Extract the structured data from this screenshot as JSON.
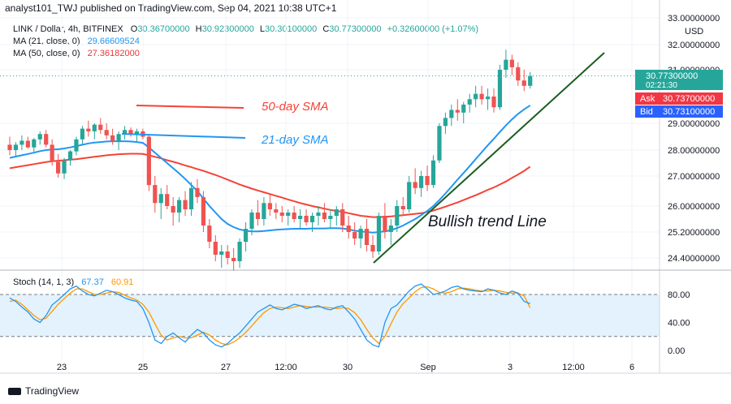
{
  "header": {
    "publisher": "analyst101_TWJ published on TradingView.com, Sep 04, 2021 10:38 UTC+1"
  },
  "legend": {
    "symbol": "LINK / Dollar, 4h, BITFINEX",
    "ohlc": {
      "O": "30.36700000",
      "H": "30.92300000",
      "L": "30.30100000",
      "C": "30.77300000",
      "change": "+0.32600000 (+1.07%)"
    },
    "ma21": {
      "label": "MA (21, close, 0)",
      "value": "29.66609524"
    },
    "ma50": {
      "label": "MA (50, close, 0)",
      "value": "27.36182000"
    }
  },
  "price_axis": {
    "currency": "USD",
    "ticks": [
      "33.00000000",
      "32.00000000",
      "31.00000000",
      "29.00000000",
      "28.00000000",
      "27.00000000",
      "26.00000000",
      "25.20000000",
      "24.40000000"
    ],
    "last_price": "30.77300000",
    "countdown": "02:21:30",
    "ask_label": "Ask",
    "ask": "30.73700000",
    "bid_label": "Bid",
    "bid": "30.73100000"
  },
  "time_axis": {
    "ticks": [
      "23",
      "25",
      "27",
      "12:00",
      "30",
      "Sep",
      "3",
      "12:00",
      "6"
    ]
  },
  "annotations": {
    "sma50": "50-day SMA",
    "sma21": "21-day SMA",
    "trend": "Bullish trend Line"
  },
  "stoch": {
    "label": "Stoch (14, 1, 3)",
    "k_value": "67.37",
    "d_value": "60.91",
    "ticks": [
      "80.00",
      "40.00",
      "0.00"
    ],
    "upper": 80,
    "lower": 20
  },
  "brand": {
    "name": "TradingView"
  },
  "colors": {
    "up": "#26a69a",
    "down": "#ef5350",
    "ma21": "#2196f3",
    "ma50": "#f44336",
    "trend": "#1b5e20",
    "stoch_k": "#2196f3",
    "stoch_d": "#ff9800",
    "stoch_band": "#e3f2fd"
  },
  "chart_data": {
    "type": "candlestick",
    "title": "LINK / Dollar, 4h, BITFINEX",
    "ylim": [
      24.0,
      33.3
    ],
    "ohlc": [
      [
        28.2,
        28.5,
        27.8,
        28.0
      ],
      [
        28.0,
        28.3,
        27.75,
        28.2
      ],
      [
        28.2,
        28.55,
        28.0,
        28.35
      ],
      [
        28.35,
        28.5,
        28.05,
        28.1
      ],
      [
        28.1,
        28.45,
        27.9,
        28.4
      ],
      [
        28.4,
        28.7,
        28.2,
        28.6
      ],
      [
        28.6,
        28.75,
        28.1,
        28.2
      ],
      [
        28.2,
        28.4,
        27.4,
        27.55
      ],
      [
        27.55,
        27.85,
        26.95,
        27.1
      ],
      [
        27.1,
        27.7,
        26.9,
        27.6
      ],
      [
        27.6,
        28.0,
        27.4,
        27.95
      ],
      [
        27.95,
        28.5,
        27.8,
        28.4
      ],
      [
        28.4,
        28.9,
        28.2,
        28.8
      ],
      [
        28.8,
        29.1,
        28.5,
        28.7
      ],
      [
        28.7,
        29.0,
        28.4,
        28.95
      ],
      [
        28.95,
        29.2,
        28.6,
        28.75
      ],
      [
        28.75,
        29.0,
        28.4,
        28.55
      ],
      [
        28.55,
        28.8,
        28.2,
        28.35
      ],
      [
        28.35,
        28.7,
        28.0,
        28.6
      ],
      [
        28.6,
        28.9,
        28.4,
        28.75
      ],
      [
        28.75,
        28.85,
        28.5,
        28.6
      ],
      [
        28.6,
        28.8,
        28.3,
        28.7
      ],
      [
        28.7,
        28.8,
        28.4,
        28.5
      ],
      [
        28.5,
        28.6,
        26.5,
        26.7
      ],
      [
        26.7,
        27.0,
        25.8,
        26.1
      ],
      [
        26.1,
        26.6,
        25.6,
        26.4
      ],
      [
        26.4,
        26.7,
        25.9,
        26.0
      ],
      [
        26.0,
        26.3,
        25.4,
        25.8
      ],
      [
        25.8,
        26.3,
        25.5,
        26.2
      ],
      [
        26.2,
        26.5,
        25.7,
        25.9
      ],
      [
        25.9,
        26.8,
        25.7,
        26.6
      ],
      [
        26.6,
        26.9,
        26.1,
        26.3
      ],
      [
        26.3,
        26.5,
        25.2,
        25.4
      ],
      [
        25.4,
        25.6,
        24.7,
        24.9
      ],
      [
        24.9,
        25.1,
        24.3,
        24.5
      ],
      [
        24.5,
        24.8,
        24.1,
        24.6
      ],
      [
        24.6,
        24.8,
        24.2,
        24.4
      ],
      [
        24.4,
        24.7,
        24.0,
        24.3
      ],
      [
        24.3,
        25.0,
        24.1,
        24.9
      ],
      [
        24.9,
        25.5,
        24.6,
        25.3
      ],
      [
        25.3,
        25.9,
        25.1,
        25.8
      ],
      [
        25.8,
        26.2,
        25.4,
        25.6
      ],
      [
        25.6,
        26.3,
        25.4,
        26.1
      ],
      [
        26.1,
        26.4,
        25.7,
        25.9
      ],
      [
        25.9,
        26.1,
        25.6,
        25.8
      ],
      [
        25.8,
        26.0,
        25.5,
        25.7
      ],
      [
        25.7,
        25.9,
        25.4,
        25.8
      ],
      [
        25.8,
        26.0,
        25.5,
        25.6
      ],
      [
        25.6,
        25.9,
        25.3,
        25.7
      ],
      [
        25.7,
        25.9,
        25.4,
        25.5
      ],
      [
        25.5,
        25.8,
        25.2,
        25.7
      ],
      [
        25.7,
        26.0,
        25.4,
        25.8
      ],
      [
        25.8,
        26.1,
        25.5,
        25.6
      ],
      [
        25.6,
        25.9,
        25.3,
        25.7
      ],
      [
        25.7,
        26.0,
        25.4,
        25.9
      ],
      [
        25.9,
        26.1,
        25.2,
        25.4
      ],
      [
        25.4,
        25.7,
        25.0,
        25.2
      ],
      [
        25.2,
        25.5,
        24.8,
        25.0
      ],
      [
        25.0,
        25.4,
        24.7,
        25.3
      ],
      [
        25.3,
        25.6,
        24.6,
        24.8
      ],
      [
        24.8,
        25.1,
        24.4,
        24.6
      ],
      [
        24.6,
        25.8,
        24.5,
        25.7
      ],
      [
        25.7,
        26.1,
        25.0,
        25.2
      ],
      [
        25.2,
        25.6,
        24.8,
        25.4
      ],
      [
        25.4,
        26.2,
        25.2,
        26.0
      ],
      [
        26.0,
        26.3,
        25.7,
        25.9
      ],
      [
        25.9,
        27.0,
        25.8,
        26.8
      ],
      [
        26.8,
        27.3,
        26.4,
        26.6
      ],
      [
        26.6,
        27.2,
        26.3,
        27.0
      ],
      [
        27.0,
        27.4,
        26.5,
        26.7
      ],
      [
        26.7,
        27.8,
        26.6,
        27.6
      ],
      [
        27.6,
        29.0,
        27.5,
        28.9
      ],
      [
        28.9,
        29.4,
        28.6,
        29.2
      ],
      [
        29.2,
        29.7,
        28.9,
        29.5
      ],
      [
        29.5,
        29.9,
        29.1,
        29.4
      ],
      [
        29.4,
        29.8,
        29.0,
        29.7
      ],
      [
        29.7,
        30.1,
        29.4,
        29.9
      ],
      [
        29.9,
        30.4,
        29.6,
        30.1
      ],
      [
        30.1,
        30.4,
        29.7,
        29.9
      ],
      [
        29.9,
        30.3,
        29.5,
        30.0
      ],
      [
        30.0,
        30.3,
        29.4,
        29.6
      ],
      [
        29.6,
        31.2,
        29.5,
        31.0
      ],
      [
        31.0,
        31.8,
        30.7,
        31.4
      ],
      [
        31.4,
        31.6,
        30.8,
        31.1
      ],
      [
        31.1,
        31.3,
        30.4,
        30.6
      ],
      [
        30.6,
        31.0,
        30.2,
        30.4
      ],
      [
        30.4,
        30.92,
        30.3,
        30.77
      ]
    ],
    "ma21": [
      27.7,
      27.75,
      27.8,
      27.85,
      27.9,
      27.96,
      28.0,
      28.02,
      28.03,
      28.06,
      28.1,
      28.15,
      28.2,
      28.25,
      28.28,
      28.3,
      28.32,
      28.33,
      28.33,
      28.33,
      28.32,
      28.3,
      28.27,
      28.1,
      27.9,
      27.7,
      27.5,
      27.3,
      27.1,
      26.9,
      26.7,
      26.5,
      26.25,
      26.0,
      25.8,
      25.6,
      25.45,
      25.35,
      25.28,
      25.24,
      25.22,
      25.22,
      25.23,
      25.25,
      25.27,
      25.28,
      25.29,
      25.3,
      25.3,
      25.3,
      25.31,
      25.31,
      25.31,
      25.32,
      25.32,
      25.31,
      25.28,
      25.24,
      25.22,
      25.2,
      25.18,
      25.2,
      25.22,
      25.26,
      25.32,
      25.4,
      25.5,
      25.6,
      25.72,
      25.85,
      26.0,
      26.2,
      26.42,
      26.65,
      26.88,
      27.12,
      27.38,
      27.65,
      27.92,
      28.18,
      28.42,
      28.68,
      28.92,
      29.15,
      29.35,
      29.52,
      29.67
    ],
    "ma50": [
      27.3,
      27.34,
      27.38,
      27.42,
      27.46,
      27.5,
      27.54,
      27.57,
      27.59,
      27.61,
      27.63,
      27.65,
      27.68,
      27.71,
      27.74,
      27.77,
      27.8,
      27.82,
      27.84,
      27.85,
      27.86,
      27.86,
      27.85,
      27.8,
      27.74,
      27.68,
      27.61,
      27.55,
      27.48,
      27.41,
      27.34,
      27.27,
      27.2,
      27.12,
      27.04,
      26.96,
      26.88,
      26.8,
      26.72,
      26.65,
      26.58,
      26.52,
      26.46,
      26.4,
      26.34,
      26.28,
      26.22,
      26.16,
      26.1,
      26.05,
      26.0,
      25.96,
      25.92,
      25.88,
      25.85,
      25.82,
      25.78,
      25.74,
      25.7,
      25.68,
      25.66,
      25.66,
      25.67,
      25.68,
      25.7,
      25.72,
      25.74,
      25.76,
      25.78,
      25.82,
      25.86,
      25.92,
      25.98,
      26.05,
      26.12,
      26.2,
      26.28,
      26.36,
      26.45,
      26.54,
      26.62,
      26.72,
      26.82,
      26.94,
      27.06,
      27.2,
      27.36
    ],
    "stoch_k": [
      75,
      70,
      62,
      55,
      45,
      40,
      50,
      65,
      72,
      80,
      88,
      92,
      85,
      80,
      78,
      82,
      86,
      84,
      80,
      75,
      72,
      70,
      60,
      40,
      15,
      10,
      20,
      25,
      18,
      12,
      22,
      30,
      25,
      15,
      8,
      5,
      10,
      18,
      25,
      35,
      45,
      55,
      60,
      65,
      60,
      58,
      62,
      66,
      64,
      60,
      62,
      64,
      60,
      58,
      62,
      64,
      55,
      45,
      30,
      15,
      8,
      5,
      40,
      60,
      65,
      75,
      85,
      92,
      95,
      88,
      80,
      82,
      85,
      90,
      92,
      88,
      86,
      85,
      84,
      88,
      86,
      82,
      80,
      85,
      82,
      70,
      67
    ],
    "stoch_d": [
      70,
      72,
      66,
      58,
      50,
      44,
      46,
      56,
      66,
      74,
      82,
      88,
      88,
      84,
      80,
      80,
      82,
      84,
      83,
      79,
      75,
      72,
      66,
      55,
      38,
      22,
      15,
      18,
      20,
      18,
      18,
      22,
      26,
      22,
      15,
      10,
      8,
      12,
      18,
      26,
      35,
      45,
      54,
      60,
      62,
      61,
      60,
      62,
      64,
      63,
      62,
      62,
      62,
      61,
      60,
      61,
      60,
      54,
      44,
      30,
      18,
      10,
      20,
      38,
      55,
      67,
      75,
      84,
      90,
      91,
      88,
      83,
      82,
      84,
      88,
      89,
      88,
      86,
      85,
      85,
      86,
      85,
      83,
      82,
      82,
      78,
      61
    ],
    "trend_line": {
      "from": [
        "Aug 30",
        24.5
      ],
      "to": [
        "Sep 5",
        31.75
      ]
    }
  }
}
